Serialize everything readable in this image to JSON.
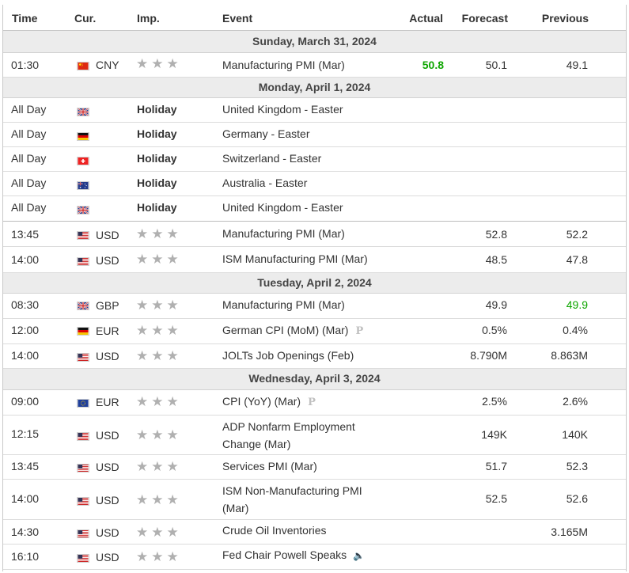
{
  "headers": {
    "time": "Time",
    "cur": "Cur.",
    "imp": "Imp.",
    "event": "Event",
    "actual": "Actual",
    "forecast": "Forecast",
    "previous": "Previous"
  },
  "days": {
    "d1": "Sunday, March 31, 2024",
    "d2": "Monday, April 1, 2024",
    "d3": "Tuesday, April 2, 2024",
    "d4": "Wednesday, April 3, 2024"
  },
  "rows": {
    "r1": {
      "time": "01:30",
      "flag": "cn-flag",
      "cur": "CNY",
      "event": "Manufacturing PMI (Mar)",
      "actual": "50.8",
      "forecast": "50.1",
      "previous": "49.1"
    },
    "r2": {
      "time": "All Day",
      "flag": "gb-flag",
      "imp": "Holiday",
      "event": "United Kingdom - Easter"
    },
    "r3": {
      "time": "All Day",
      "flag": "de-flag",
      "imp": "Holiday",
      "event": "Germany - Easter"
    },
    "r4": {
      "time": "All Day",
      "flag": "ch-flag",
      "imp": "Holiday",
      "event": "Switzerland - Easter"
    },
    "r5": {
      "time": "All Day",
      "flag": "au-flag",
      "imp": "Holiday",
      "event": "Australia - Easter"
    },
    "r6": {
      "time": "All Day",
      "flag": "gb-flag",
      "imp": "Holiday",
      "event": "United Kingdom - Easter"
    },
    "r7": {
      "time": "13:45",
      "flag": "us-flag",
      "cur": "USD",
      "event": "Manufacturing PMI (Mar)",
      "forecast": "52.8",
      "previous": "52.2"
    },
    "r8": {
      "time": "14:00",
      "flag": "us-flag",
      "cur": "USD",
      "event": "ISM Manufacturing PMI (Mar)",
      "forecast": "48.5",
      "previous": "47.8"
    },
    "r9": {
      "time": "08:30",
      "flag": "gb-flag",
      "cur": "GBP",
      "event": "Manufacturing PMI (Mar)",
      "forecast": "49.9",
      "previous": "49.9"
    },
    "r10": {
      "time": "12:00",
      "flag": "de-flag",
      "cur": "EUR",
      "event": "German CPI (MoM) (Mar)",
      "badge": "P",
      "forecast": "0.5%",
      "previous": "0.4%"
    },
    "r11": {
      "time": "14:00",
      "flag": "us-flag",
      "cur": "USD",
      "event": "JOLTs Job Openings (Feb)",
      "forecast": "8.790M",
      "previous": "8.863M"
    },
    "r12": {
      "time": "09:00",
      "flag": "eu-flag",
      "cur": "EUR",
      "event": "CPI (YoY) (Mar)",
      "badge": "P",
      "forecast": "2.5%",
      "previous": "2.6%"
    },
    "r13": {
      "time": "12:15",
      "flag": "us-flag",
      "cur": "USD",
      "event1": "ADP Nonfarm Employment",
      "event2": "Change (Mar)",
      "forecast": "149K",
      "previous": "140K"
    },
    "r14": {
      "time": "13:45",
      "flag": "us-flag",
      "cur": "USD",
      "event": "Services PMI (Mar)",
      "forecast": "51.7",
      "previous": "52.3"
    },
    "r15": {
      "time": "14:00",
      "flag": "us-flag",
      "cur": "USD",
      "event1": "ISM Non-Manufacturing PMI",
      "event2": "(Mar)",
      "forecast": "52.5",
      "previous": "52.6"
    },
    "r16": {
      "time": "14:30",
      "flag": "us-flag",
      "cur": "USD",
      "event": "Crude Oil Inventories",
      "previous": "3.165M"
    },
    "r17": {
      "time": "16:10",
      "flag": "us-flag",
      "cur": "USD",
      "event": "Fed Chair Powell Speaks",
      "icon": "speaker-icon"
    }
  },
  "colors": {
    "positive": "#0ea600",
    "star": "#b0b0b0",
    "day_bg": "#ececec"
  }
}
